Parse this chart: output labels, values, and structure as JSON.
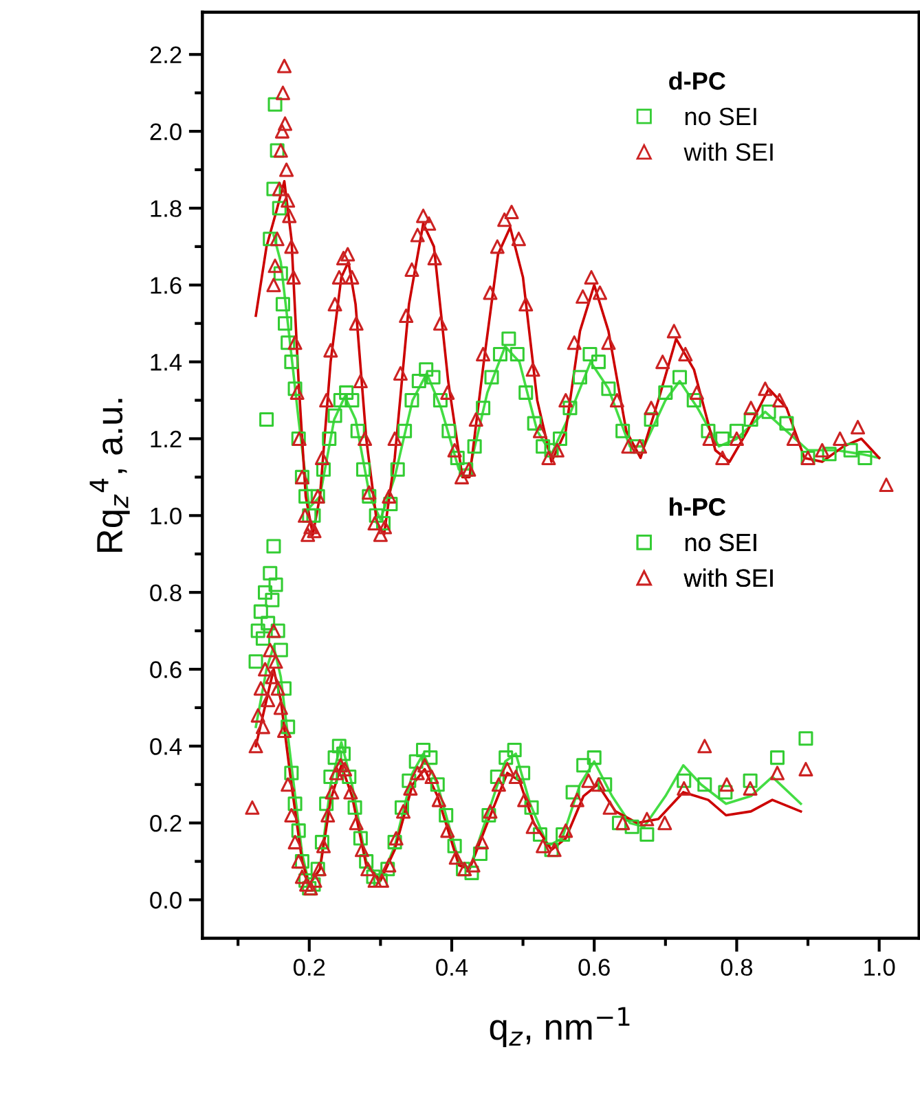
{
  "chart_data": {
    "type": "scatter",
    "xlabel": "q$_{z}$, nm$^{−1}$",
    "ylabel": "Rq$_{z}$$^{4}$, a.u.",
    "xlim": [
      0.05,
      1.056
    ],
    "ylim": [
      -0.1,
      2.31
    ],
    "xticks": [
      {
        "value": 0.1,
        "label": null
      },
      0.2,
      {
        "value": 0.3,
        "label": null
      },
      0.4,
      {
        "value": 0.5,
        "label": null
      },
      0.6,
      {
        "value": 0.7,
        "label": null
      },
      0.8,
      {
        "value": 0.9,
        "label": null
      },
      {
        "value": 1.0,
        "label": "1.0"
      }
    ],
    "yticks": [
      {
        "value": 0,
        "label": "0.0"
      },
      {
        "value": 0.1,
        "label": null
      },
      0.2,
      {
        "value": 0.3,
        "label": null
      },
      0.4,
      {
        "value": 0.5,
        "label": null
      },
      0.6,
      {
        "value": 0.7,
        "label": null
      },
      0.8,
      {
        "value": 0.9,
        "label": null
      },
      {
        "value": 1.0,
        "label": "1.0"
      },
      {
        "value": 1.1,
        "label": null
      },
      1.2,
      {
        "value": 1.3,
        "label": null
      },
      1.4,
      {
        "value": 1.5,
        "label": null
      },
      1.6,
      {
        "value": 1.7,
        "label": null
      },
      1.8,
      {
        "value": 1.9,
        "label": null
      },
      {
        "value": 2.0,
        "label": "2.0"
      },
      {
        "value": 2.1,
        "label": null
      },
      2.2
    ],
    "grid": false,
    "legend": "top right",
    "annotations": [
      "d-PC",
      "h-PC"
    ],
    "series": [
      {
        "name": "no SEI",
        "marker": "square",
        "color": "#33cc33",
        "x": [
          0.14,
          0.145,
          0.15,
          0.152,
          0.155,
          0.158,
          0.16,
          0.163,
          0.166,
          0.17,
          0.175,
          0.18,
          0.185,
          0.19,
          0.195,
          0.2,
          0.206,
          0.212,
          0.22,
          0.228,
          0.236,
          0.244,
          0.252,
          0.26,
          0.268,
          0.276,
          0.284,
          0.294,
          0.304,
          0.314,
          0.324,
          0.334,
          0.344,
          0.354,
          0.364,
          0.374,
          0.384,
          0.396,
          0.408,
          0.42,
          0.432,
          0.444,
          0.456,
          0.468,
          0.48,
          0.492,
          0.504,
          0.516,
          0.528,
          0.54,
          0.552,
          0.566,
          0.58,
          0.594,
          0.606,
          0.62,
          0.64,
          0.66,
          0.68,
          0.7,
          0.72,
          0.74,
          0.76,
          0.78,
          0.8,
          0.82,
          0.845,
          0.87,
          0.9,
          0.93,
          0.96,
          0.98
        ],
        "values": [
          1.25,
          1.72,
          1.85,
          2.07,
          1.95,
          1.8,
          1.63,
          1.55,
          1.5,
          1.45,
          1.4,
          1.33,
          1.2,
          1.1,
          1.05,
          1.0,
          1.0,
          1.05,
          1.12,
          1.2,
          1.26,
          1.3,
          1.32,
          1.3,
          1.22,
          1.12,
          1.05,
          1.0,
          0.98,
          1.03,
          1.12,
          1.22,
          1.3,
          1.35,
          1.38,
          1.36,
          1.3,
          1.22,
          1.15,
          1.12,
          1.18,
          1.28,
          1.36,
          1.42,
          1.46,
          1.42,
          1.32,
          1.24,
          1.18,
          1.17,
          1.2,
          1.28,
          1.36,
          1.42,
          1.4,
          1.33,
          1.22,
          1.18,
          1.25,
          1.32,
          1.36,
          1.3,
          1.22,
          1.2,
          1.22,
          1.25,
          1.27,
          1.24,
          1.15,
          1.16,
          1.17,
          1.15
        ]
      },
      {
        "name": "with SEI",
        "marker": "triangle",
        "color": "#cc2222",
        "x": [
          0.15,
          0.152,
          0.155,
          0.158,
          0.16,
          0.162,
          0.163,
          0.165,
          0.166,
          0.168,
          0.17,
          0.172,
          0.175,
          0.178,
          0.18,
          0.183,
          0.186,
          0.19,
          0.194,
          0.198,
          0.202,
          0.207,
          0.212,
          0.218,
          0.224,
          0.23,
          0.236,
          0.242,
          0.248,
          0.254,
          0.26,
          0.266,
          0.272,
          0.278,
          0.284,
          0.292,
          0.3,
          0.306,
          0.312,
          0.32,
          0.328,
          0.336,
          0.344,
          0.352,
          0.36,
          0.368,
          0.376,
          0.384,
          0.394,
          0.404,
          0.414,
          0.424,
          0.434,
          0.444,
          0.454,
          0.464,
          0.474,
          0.484,
          0.494,
          0.504,
          0.514,
          0.524,
          0.536,
          0.548,
          0.56,
          0.572,
          0.584,
          0.596,
          0.608,
          0.62,
          0.632,
          0.648,
          0.664,
          0.68,
          0.696,
          0.712,
          0.728,
          0.744,
          0.762,
          0.78,
          0.8,
          0.82,
          0.84,
          0.86,
          0.88,
          0.9,
          0.92,
          0.945,
          0.97,
          1.01
        ],
        "values": [
          1.6,
          1.65,
          1.72,
          1.85,
          1.95,
          2.0,
          2.1,
          2.17,
          2.02,
          1.9,
          1.82,
          1.78,
          1.7,
          1.62,
          1.45,
          1.32,
          1.2,
          1.1,
          1.0,
          0.95,
          0.97,
          0.96,
          1.05,
          1.15,
          1.3,
          1.43,
          1.55,
          1.62,
          1.67,
          1.68,
          1.62,
          1.5,
          1.35,
          1.2,
          1.06,
          0.98,
          0.95,
          0.97,
          1.05,
          1.2,
          1.37,
          1.52,
          1.64,
          1.73,
          1.78,
          1.76,
          1.67,
          1.5,
          1.32,
          1.17,
          1.1,
          1.12,
          1.25,
          1.42,
          1.58,
          1.7,
          1.77,
          1.79,
          1.72,
          1.55,
          1.38,
          1.22,
          1.15,
          1.17,
          1.3,
          1.45,
          1.57,
          1.62,
          1.58,
          1.45,
          1.3,
          1.18,
          1.18,
          1.28,
          1.4,
          1.48,
          1.42,
          1.32,
          1.2,
          1.15,
          1.2,
          1.28,
          1.33,
          1.3,
          1.2,
          1.15,
          1.17,
          1.2,
          1.23,
          1.08
        ]
      },
      {
        "type": "line",
        "color": "#44dd44",
        "x": [
          0.15,
          0.16,
          0.17,
          0.185,
          0.2,
          0.215,
          0.235,
          0.25,
          0.265,
          0.285,
          0.3,
          0.32,
          0.345,
          0.365,
          0.385,
          0.41,
          0.425,
          0.45,
          0.475,
          0.495,
          0.52,
          0.54,
          0.565,
          0.595,
          0.62,
          0.65,
          0.67,
          0.7,
          0.72,
          0.745,
          0.775,
          0.8,
          0.84,
          0.87,
          0.9,
          0.94,
          0.975,
          1.0
        ],
        "values": [
          1.73,
          1.66,
          1.5,
          1.25,
          1.02,
          1.05,
          1.25,
          1.31,
          1.25,
          1.05,
          0.99,
          1.1,
          1.3,
          1.37,
          1.28,
          1.12,
          1.12,
          1.32,
          1.44,
          1.4,
          1.22,
          1.16,
          1.26,
          1.4,
          1.33,
          1.18,
          1.18,
          1.3,
          1.35,
          1.28,
          1.18,
          1.2,
          1.27,
          1.22,
          1.17,
          1.17,
          1.16,
          1.15
        ]
      },
      {
        "type": "line",
        "color": "#cc0000",
        "x": [
          0.125,
          0.14,
          0.155,
          0.165,
          0.175,
          0.185,
          0.195,
          0.205,
          0.215,
          0.23,
          0.245,
          0.255,
          0.265,
          0.28,
          0.295,
          0.305,
          0.32,
          0.34,
          0.36,
          0.375,
          0.395,
          0.415,
          0.425,
          0.445,
          0.465,
          0.482,
          0.5,
          0.52,
          0.54,
          0.56,
          0.58,
          0.6,
          0.62,
          0.645,
          0.665,
          0.69,
          0.715,
          0.74,
          0.77,
          0.79,
          0.815,
          0.845,
          0.87,
          0.895,
          0.92,
          0.95,
          0.975,
          1.0
        ],
        "values": [
          1.52,
          1.7,
          1.8,
          1.87,
          1.72,
          1.35,
          1.05,
          0.95,
          1.05,
          1.4,
          1.62,
          1.66,
          1.55,
          1.2,
          0.98,
          0.95,
          1.15,
          1.55,
          1.76,
          1.7,
          1.35,
          1.1,
          1.1,
          1.4,
          1.68,
          1.75,
          1.62,
          1.3,
          1.14,
          1.22,
          1.48,
          1.6,
          1.48,
          1.22,
          1.15,
          1.3,
          1.46,
          1.38,
          1.17,
          1.14,
          1.22,
          1.33,
          1.28,
          1.15,
          1.14,
          1.18,
          1.2,
          1.15
        ]
      },
      {
        "name": "no SEI",
        "marker": "square",
        "color": "#33cc33",
        "x": [
          0.125,
          0.128,
          0.132,
          0.135,
          0.138,
          0.142,
          0.145,
          0.148,
          0.15,
          0.153,
          0.156,
          0.16,
          0.165,
          0.17,
          0.175,
          0.18,
          0.185,
          0.19,
          0.195,
          0.2,
          0.206,
          0.212,
          0.218,
          0.224,
          0.23,
          0.236,
          0.242,
          0.248,
          0.256,
          0.264,
          0.272,
          0.28,
          0.29,
          0.3,
          0.31,
          0.32,
          0.33,
          0.34,
          0.35,
          0.36,
          0.37,
          0.38,
          0.392,
          0.404,
          0.416,
          0.428,
          0.44,
          0.452,
          0.464,
          0.476,
          0.488,
          0.5,
          0.512,
          0.524,
          0.54,
          0.556,
          0.57,
          0.585,
          0.6,
          0.615,
          0.635,
          0.653,
          0.674,
          0.726,
          0.755,
          0.784,
          0.819,
          0.857,
          0.897
        ],
        "values": [
          0.62,
          0.7,
          0.75,
          0.68,
          0.8,
          0.72,
          0.85,
          0.78,
          0.92,
          0.82,
          0.7,
          0.65,
          0.55,
          0.45,
          0.33,
          0.25,
          0.18,
          0.1,
          0.05,
          0.03,
          0.04,
          0.08,
          0.15,
          0.25,
          0.32,
          0.37,
          0.4,
          0.38,
          0.32,
          0.24,
          0.16,
          0.1,
          0.06,
          0.05,
          0.08,
          0.15,
          0.24,
          0.31,
          0.36,
          0.39,
          0.37,
          0.3,
          0.22,
          0.14,
          0.08,
          0.07,
          0.12,
          0.22,
          0.32,
          0.37,
          0.39,
          0.33,
          0.24,
          0.17,
          0.13,
          0.17,
          0.28,
          0.35,
          0.37,
          0.3,
          0.2,
          0.19,
          0.17,
          0.31,
          0.3,
          0.28,
          0.31,
          0.37,
          0.42
        ]
      },
      {
        "name": "with SEI",
        "marker": "triangle",
        "color": "#cc2222",
        "x": [
          0.12,
          0.125,
          0.128,
          0.132,
          0.135,
          0.138,
          0.142,
          0.145,
          0.148,
          0.15,
          0.153,
          0.156,
          0.16,
          0.165,
          0.17,
          0.175,
          0.18,
          0.185,
          0.19,
          0.196,
          0.202,
          0.208,
          0.214,
          0.22,
          0.226,
          0.232,
          0.238,
          0.244,
          0.25,
          0.258,
          0.266,
          0.274,
          0.282,
          0.292,
          0.302,
          0.312,
          0.322,
          0.332,
          0.342,
          0.352,
          0.362,
          0.372,
          0.382,
          0.394,
          0.406,
          0.418,
          0.43,
          0.442,
          0.454,
          0.466,
          0.478,
          0.49,
          0.502,
          0.514,
          0.528,
          0.544,
          0.56,
          0.576,
          0.592,
          0.606,
          0.622,
          0.64,
          0.674,
          0.699,
          0.726,
          0.755,
          0.786,
          0.819,
          0.857,
          0.897
        ],
        "values": [
          0.24,
          0.4,
          0.48,
          0.55,
          0.45,
          0.6,
          0.52,
          0.65,
          0.58,
          0.7,
          0.62,
          0.55,
          0.5,
          0.44,
          0.3,
          0.22,
          0.15,
          0.1,
          0.06,
          0.04,
          0.03,
          0.05,
          0.08,
          0.14,
          0.22,
          0.28,
          0.33,
          0.35,
          0.34,
          0.28,
          0.2,
          0.13,
          0.08,
          0.05,
          0.05,
          0.09,
          0.16,
          0.23,
          0.29,
          0.33,
          0.35,
          0.32,
          0.26,
          0.18,
          0.11,
          0.08,
          0.09,
          0.15,
          0.23,
          0.3,
          0.34,
          0.32,
          0.26,
          0.19,
          0.14,
          0.13,
          0.18,
          0.26,
          0.31,
          0.3,
          0.24,
          0.2,
          0.21,
          0.2,
          0.29,
          0.4,
          0.3,
          0.29,
          0.33,
          0.34
        ]
      },
      {
        "type": "line",
        "color": "#44dd44",
        "x": [
          0.125,
          0.14,
          0.15,
          0.16,
          0.175,
          0.19,
          0.2,
          0.215,
          0.23,
          0.245,
          0.26,
          0.28,
          0.3,
          0.32,
          0.345,
          0.36,
          0.38,
          0.41,
          0.425,
          0.45,
          0.475,
          0.49,
          0.51,
          0.535,
          0.555,
          0.58,
          0.6,
          0.625,
          0.65,
          0.67,
          0.7,
          0.725,
          0.75,
          0.785,
          0.82,
          0.85,
          0.89
        ],
        "values": [
          0.45,
          0.6,
          0.66,
          0.58,
          0.35,
          0.12,
          0.04,
          0.08,
          0.3,
          0.41,
          0.3,
          0.1,
          0.05,
          0.14,
          0.33,
          0.38,
          0.3,
          0.1,
          0.08,
          0.22,
          0.36,
          0.38,
          0.25,
          0.14,
          0.16,
          0.3,
          0.36,
          0.27,
          0.2,
          0.19,
          0.27,
          0.35,
          0.3,
          0.25,
          0.27,
          0.32,
          0.25
        ]
      },
      {
        "type": "line",
        "color": "#cc0000",
        "x": [
          0.125,
          0.14,
          0.15,
          0.16,
          0.175,
          0.19,
          0.2,
          0.215,
          0.23,
          0.245,
          0.26,
          0.28,
          0.3,
          0.32,
          0.345,
          0.362,
          0.38,
          0.41,
          0.425,
          0.45,
          0.478,
          0.495,
          0.515,
          0.54,
          0.56,
          0.585,
          0.605,
          0.63,
          0.66,
          0.69,
          0.725,
          0.76,
          0.785,
          0.82,
          0.85,
          0.89
        ],
        "values": [
          0.4,
          0.52,
          0.6,
          0.52,
          0.3,
          0.1,
          0.04,
          0.08,
          0.26,
          0.35,
          0.27,
          0.09,
          0.05,
          0.13,
          0.3,
          0.34,
          0.27,
          0.09,
          0.08,
          0.2,
          0.33,
          0.31,
          0.2,
          0.13,
          0.16,
          0.27,
          0.3,
          0.23,
          0.2,
          0.21,
          0.28,
          0.26,
          0.22,
          0.23,
          0.26,
          0.23
        ]
      }
    ]
  }
}
